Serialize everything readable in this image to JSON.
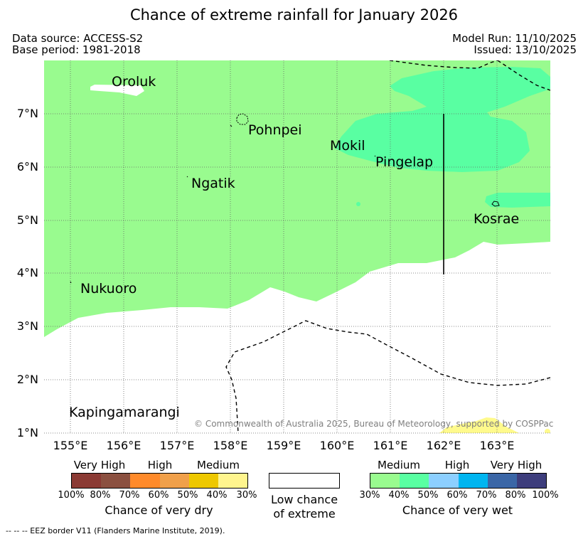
{
  "title": "Chance of extreme rainfall for January 2026",
  "meta": {
    "data_source": "Data source: ACCESS-S2",
    "base_period": "Base period: 1981-2018",
    "model_run": "Model Run: 11/10/2025",
    "issued": "Issued: 13/10/2025"
  },
  "map": {
    "lat_labels": [
      "7°N",
      "6°N",
      "5°N",
      "4°N",
      "3°N",
      "2°N",
      "1°N"
    ],
    "lon_labels": [
      "155°E",
      "156°E",
      "157°E",
      "158°E",
      "159°E",
      "160°E",
      "161°E",
      "162°E",
      "163°E"
    ],
    "places": {
      "oroluk": "Oroluk",
      "pohnpei": "Pohnpei",
      "mokil": "Mokil",
      "pingelap": "Pingelap",
      "ngatik": "Ngatik",
      "kosrae": "Kosrae",
      "nukuoro": "Nukuoro",
      "kapingamarangi": "Kapingamarangi"
    },
    "copyright": "© Commonwealth of Australia 2025, Bureau of Meteorology, supported by COSPPac",
    "colors": {
      "wet_medium": "#99fb8f",
      "wet_medium_high": "#59ffa2",
      "dry_medium": "#fffa8c"
    }
  },
  "legend": {
    "dry": {
      "categories": [
        "Very High",
        "High",
        "Medium"
      ],
      "ticks": [
        "100%",
        "80%",
        "70%",
        "60%",
        "50%",
        "40%",
        "30%"
      ],
      "caption": "Chance of very dry",
      "colors": [
        "#8b3a34",
        "#8b5040",
        "#ff8a2a",
        "#f0a04a",
        "#eec800",
        "#fff58e"
      ]
    },
    "neutral": {
      "caption_line1": "Low chance",
      "caption_line2": "of extreme"
    },
    "wet": {
      "categories": [
        "Medium",
        "High",
        "Very High"
      ],
      "ticks": [
        "30%",
        "40%",
        "50%",
        "60%",
        "70%",
        "80%",
        "100%"
      ],
      "caption": "Chance of very wet",
      "colors": [
        "#99fb8f",
        "#59ffa2",
        "#8ccfff",
        "#00b5f0",
        "#3a66a6",
        "#3d3d7c"
      ]
    }
  },
  "footnote": "--  --  -- EEZ border V11 (Flanders Marine Institute, 2019)."
}
